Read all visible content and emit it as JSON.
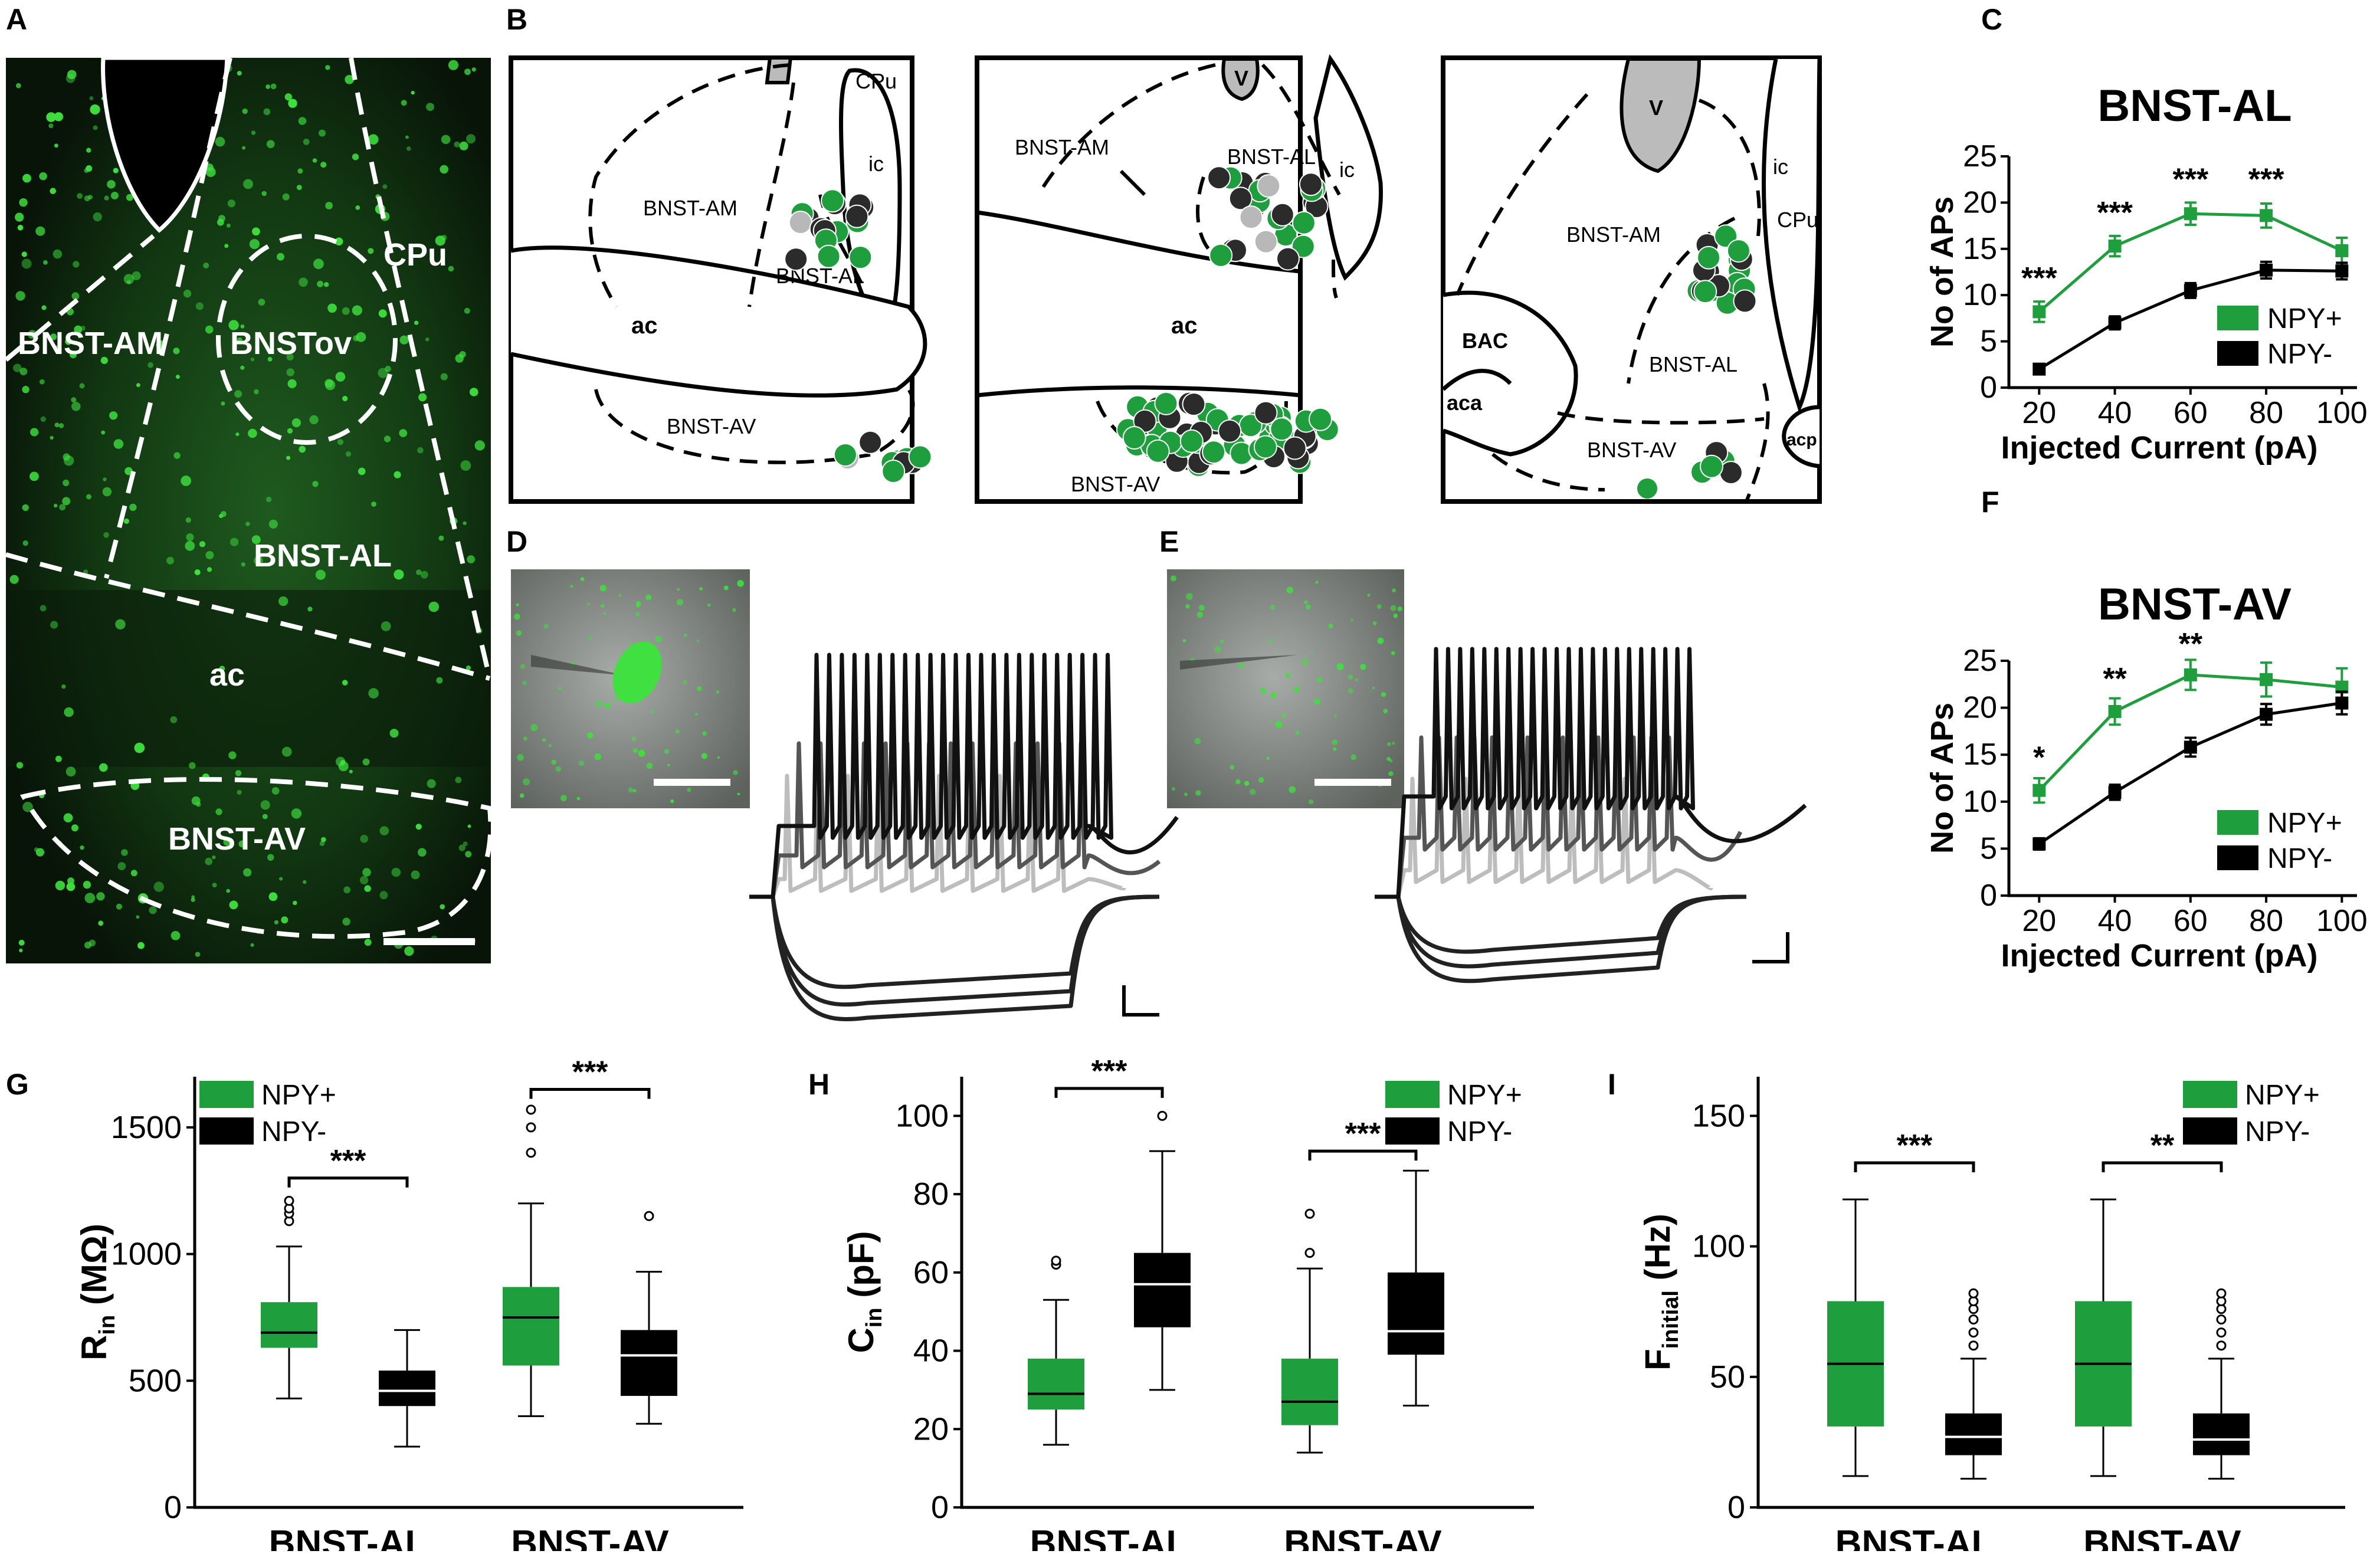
{
  "panel_letters": {
    "A": "A",
    "B": "B",
    "C": "C",
    "D": "D",
    "E": "E",
    "F": "F",
    "G": "G",
    "H": "H",
    "I": "I"
  },
  "colors": {
    "npy_pos": "#1e9e3c",
    "npy_neg": "#000000",
    "fluor": "#2fbf2f",
    "region_bg": "#0c1c0c"
  },
  "panel_a": {
    "labels": {
      "cpu": "CPu",
      "bnst_am": "BNST-AM",
      "bnst_ov": "BNSTov",
      "bnst_al": "BNST-AL",
      "ac": "ac",
      "bnst_av": "BNST-AV"
    }
  },
  "panel_b": {
    "s1": {
      "cpu": "CPu",
      "ic": "ic",
      "bnst_am": "BNST-AM",
      "bnst_al": "BNST-AL",
      "ac": "ac",
      "bnst_av": "BNST-AV"
    },
    "s2": {
      "v": "V",
      "bnst_am": "BNST-AM",
      "bnst_al": "BNST-AL",
      "ic": "ic",
      "ac": "ac",
      "bnst_av": "BNST-AV"
    },
    "s3": {
      "v": "V",
      "ic": "ic",
      "cpu": "CPu",
      "bnst_am": "BNST-AM",
      "bac": "BAC",
      "aca": "aca",
      "bnst_al": "BNST-AL",
      "acp": "acp",
      "bnst_av": "BNST-AV"
    }
  },
  "chart_data": [
    {
      "id": "C",
      "type": "line",
      "title": "BNST-AL",
      "xlabel": "Injected Current (pA)",
      "ylabel": "No of APs",
      "x": [
        20,
        40,
        60,
        80,
        100
      ],
      "xlim": [
        12,
        104
      ],
      "ylim": [
        0,
        25
      ],
      "yticks": [
        0,
        5,
        10,
        15,
        20,
        25
      ],
      "series": [
        {
          "name": "NPY+",
          "color": "#1e9e3c",
          "values": [
            8.2,
            15.3,
            18.8,
            18.6,
            14.8
          ],
          "err": [
            1.1,
            1.1,
            1.2,
            1.3,
            1.4
          ]
        },
        {
          "name": "NPY-",
          "color": "#000000",
          "values": [
            2.0,
            7.0,
            10.5,
            12.7,
            12.6
          ],
          "err": [
            0.4,
            0.7,
            0.8,
            0.9,
            0.9
          ]
        }
      ],
      "annotations": [
        {
          "x": 20,
          "text": "***",
          "y": 10.7
        },
        {
          "x": 40,
          "text": "***",
          "y": 17.8
        },
        {
          "x": 60,
          "text": "***",
          "y": 21.4
        },
        {
          "x": 80,
          "text": "***",
          "y": 21.4
        }
      ]
    },
    {
      "id": "F",
      "type": "line",
      "title": "BNST-AV",
      "xlabel": "Injected Current (pA)",
      "ylabel": "No of APs",
      "x": [
        20,
        40,
        60,
        80,
        100
      ],
      "xlim": [
        12,
        104
      ],
      "ylim": [
        0,
        25
      ],
      "yticks": [
        0,
        5,
        10,
        15,
        20,
        25
      ],
      "series": [
        {
          "name": "NPY+",
          "color": "#1e9e3c",
          "values": [
            11.2,
            19.6,
            23.5,
            23.0,
            22.2
          ],
          "err": [
            1.3,
            1.4,
            1.6,
            1.8,
            2.0
          ]
        },
        {
          "name": "NPY-",
          "color": "#000000",
          "values": [
            5.5,
            11.0,
            15.8,
            19.3,
            20.5
          ],
          "err": [
            0.6,
            0.8,
            1.0,
            1.1,
            1.2
          ]
        }
      ],
      "annotations": [
        {
          "x": 20,
          "text": "*",
          "y": 13.6
        },
        {
          "x": 40,
          "text": "**",
          "y": 22.0
        },
        {
          "x": 60,
          "text": "**",
          "y": 25.7
        }
      ]
    },
    {
      "id": "G",
      "type": "box",
      "ylabel_main": "R",
      "ylabel_sub": "in",
      "ylabel_unit": " (MΩ)",
      "categories": [
        "BNST-AL",
        "BNST-AV"
      ],
      "ylim": [
        0,
        1700
      ],
      "yticks": [
        0,
        500,
        1000,
        1500
      ],
      "legend": [
        "NPY+",
        "NPY-"
      ],
      "boxes": [
        {
          "group": 0,
          "series": "NPY+",
          "min": 430,
          "q1": 630,
          "median": 690,
          "q3": 810,
          "max": 1030,
          "outliers": [
            1130,
            1160,
            1180,
            1210
          ]
        },
        {
          "group": 0,
          "series": "NPY-",
          "min": 240,
          "q1": 400,
          "median": 460,
          "q3": 540,
          "max": 700,
          "outliers": []
        },
        {
          "group": 1,
          "series": "NPY+",
          "min": 360,
          "q1": 560,
          "median": 750,
          "q3": 870,
          "max": 1200,
          "outliers": [
            1400,
            1500,
            1570
          ]
        },
        {
          "group": 1,
          "series": "NPY-",
          "min": 330,
          "q1": 440,
          "median": 600,
          "q3": 700,
          "max": 930,
          "outliers": [
            1150
          ]
        }
      ],
      "significance": [
        {
          "group": 0,
          "text": "***",
          "y": 1300
        },
        {
          "group": 1,
          "text": "***",
          "y": 1650
        }
      ]
    },
    {
      "id": "H",
      "type": "box",
      "ylabel_main": "C",
      "ylabel_sub": "in",
      "ylabel_unit": " (pF)",
      "categories": [
        "BNST-AL",
        "BNST-AV"
      ],
      "ylim": [
        0,
        110
      ],
      "yticks": [
        0,
        20,
        40,
        60,
        80,
        100
      ],
      "legend": [
        "NPY+",
        "NPY-"
      ],
      "boxes": [
        {
          "group": 0,
          "series": "NPY+",
          "min": 16,
          "q1": 25,
          "median": 29,
          "q3": 38,
          "max": 53,
          "outliers": [
            62,
            63
          ]
        },
        {
          "group": 0,
          "series": "NPY-",
          "min": 30,
          "q1": 46,
          "median": 57,
          "q3": 65,
          "max": 91,
          "outliers": [
            100
          ]
        },
        {
          "group": 1,
          "series": "NPY+",
          "min": 14,
          "q1": 21,
          "median": 27,
          "q3": 38,
          "max": 61,
          "outliers": [
            65,
            75
          ]
        },
        {
          "group": 1,
          "series": "NPY-",
          "min": 26,
          "q1": 39,
          "median": 45,
          "q3": 60,
          "max": 86,
          "outliers": []
        }
      ],
      "significance": [
        {
          "group": 0,
          "text": "***",
          "y": 107
        },
        {
          "group": 1,
          "text": "***",
          "y": 91
        }
      ]
    },
    {
      "id": "I",
      "type": "box",
      "ylabel_main": "F",
      "ylabel_sub": "initial",
      "ylabel_unit": " (Hz)",
      "categories": [
        "BNST-AL",
        "BNST-AV"
      ],
      "ylim": [
        0,
        165
      ],
      "yticks": [
        0,
        50,
        100,
        150
      ],
      "legend": [
        "NPY+",
        "NPY-"
      ],
      "boxes": [
        {
          "group": 0,
          "series": "NPY+",
          "min": 12,
          "q1": 31,
          "median": 55,
          "q3": 79,
          "max": 118,
          "outliers": []
        },
        {
          "group": 0,
          "series": "NPY-",
          "min": 11,
          "q1": 20,
          "median": 27,
          "q3": 36,
          "max": 57,
          "outliers": [
            62,
            67,
            72,
            76,
            79,
            82
          ]
        },
        {
          "group": 1,
          "series": "NPY+",
          "min": 12,
          "q1": 31,
          "median": 55,
          "q3": 79,
          "max": 118,
          "outliers": []
        },
        {
          "group": 1,
          "series": "NPY-",
          "min": 11,
          "q1": 20,
          "median": 26,
          "q3": 36,
          "max": 57,
          "outliers": [
            62,
            67,
            72,
            76,
            79,
            82
          ]
        }
      ],
      "significance": [
        {
          "group": 0,
          "text": "***",
          "y": 132
        },
        {
          "group": 1,
          "text": "**",
          "y": 132
        }
      ]
    }
  ]
}
